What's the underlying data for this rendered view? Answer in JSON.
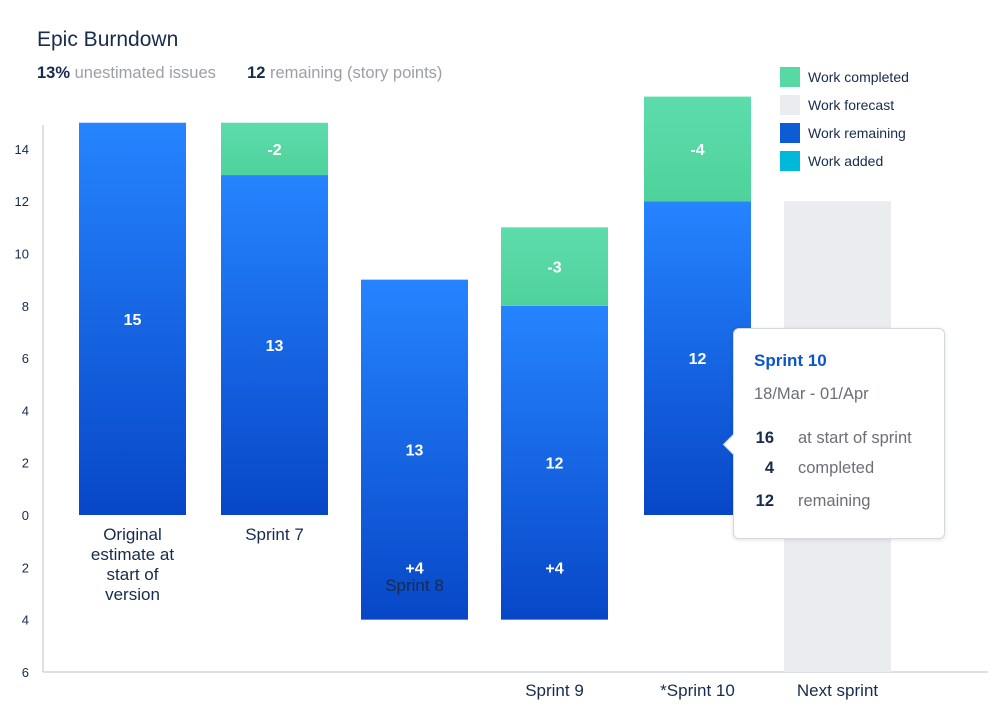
{
  "header": {
    "title": "Epic Burndown",
    "stat1_value": "13%",
    "stat1_label": "unestimated issues",
    "stat2_value": "12",
    "stat2_label": "remaining (story points)"
  },
  "legend": [
    {
      "label": "Work completed",
      "color": "#57d9a3"
    },
    {
      "label": "Work forecast",
      "color": "#ebecf0"
    },
    {
      "label": "Work remaining",
      "color": "#0b5cd5"
    },
    {
      "label": "Work added",
      "color": "#00b8d9"
    }
  ],
  "tooltip": {
    "title": "Sprint 10",
    "dates": "18/Mar - 01/Apr",
    "rows": [
      {
        "value": "16",
        "label": "at start of sprint"
      },
      {
        "value": "4",
        "label": "completed"
      },
      {
        "value": "12",
        "label": "remaining"
      }
    ]
  },
  "chart_data": {
    "type": "bar",
    "title": "Epic Burndown",
    "xlabel": "",
    "ylabel": "",
    "yticks_above": [
      14,
      12,
      10,
      8,
      6,
      4,
      2,
      0
    ],
    "yticks_below": [
      2,
      4,
      6
    ],
    "ylim": [
      -6,
      15
    ],
    "grid": false,
    "legend_position": "top-right",
    "categories": [
      "Original\nestimate at\nstart of\nversion",
      "Sprint 7",
      "Sprint 8",
      "Sprint 9",
      "*Sprint 10",
      "Next sprint"
    ],
    "series": [
      {
        "name": "Work remaining",
        "values": [
          15,
          13,
          13,
          12,
          12,
          null
        ],
        "labels": [
          "15",
          "13",
          "13",
          "12",
          "12",
          ""
        ]
      },
      {
        "name": "Work completed",
        "values": [
          null,
          2,
          null,
          3,
          4,
          null
        ],
        "labels": [
          "",
          "-2",
          "",
          "-3",
          "-4",
          ""
        ]
      },
      {
        "name": "Work added",
        "values": [
          null,
          null,
          4,
          4,
          null,
          null
        ],
        "labels": [
          "",
          "",
          "+4",
          "+4",
          "",
          ""
        ]
      },
      {
        "name": "Work forecast",
        "values": [
          null,
          null,
          null,
          null,
          null,
          12
        ],
        "labels": [
          "",
          "",
          "",
          "",
          "",
          ""
        ]
      }
    ]
  }
}
